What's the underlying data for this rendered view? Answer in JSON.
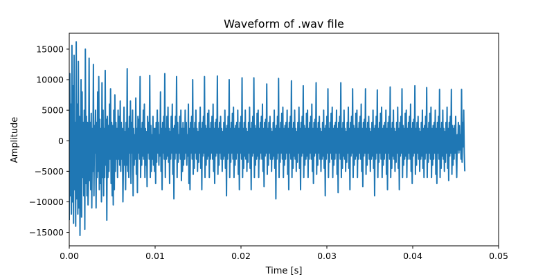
{
  "chart_data": {
    "type": "line",
    "title": "Waveform of .wav file",
    "xlabel": "Time [s]",
    "ylabel": "Amplitude",
    "xlim": [
      0,
      0.05
    ],
    "ylim": [
      -17200,
      17600
    ],
    "xticks": [
      "0.00",
      "0.01",
      "0.02",
      "0.03",
      "0.04",
      "0.05"
    ],
    "yticks": [
      "−15000",
      "−10000",
      "−5000",
      "0",
      "5000",
      "10000",
      "15000"
    ],
    "grid": false,
    "legend": "none",
    "colors": {
      "line": "#1f77b4"
    },
    "sample_interval": 6.25e-05,
    "series": [
      {
        "values": [
          -13000,
          11000,
          -9000,
          6000,
          -12000,
          15600,
          -10000,
          9000,
          -13500,
          14000,
          -8000,
          3000,
          -14000,
          16200,
          -9500,
          6000,
          -12000,
          13000,
          -11000,
          4000,
          -15500,
          -3000,
          10000,
          -12500,
          8000,
          -6000,
          3000,
          -9000,
          5000,
          -14500,
          15000,
          -7000,
          4000,
          -9000,
          3000,
          -10500,
          -6000,
          13500,
          -6500,
          3000,
          -8000,
          4500,
          -11000,
          2000,
          -5000,
          12500,
          -9000,
          2500,
          -2000,
          5000,
          -11000,
          3000,
          -6000,
          8000,
          -5000,
          10500,
          -8000,
          3500,
          -7000,
          2000,
          -10000,
          9500,
          -6000,
          5000,
          -9000,
          2000,
          -6000,
          11500,
          -4000,
          3500,
          -13000,
          4000,
          -6000,
          2500,
          -5000,
          6000,
          -3000,
          8500,
          -7000,
          3000,
          -9000,
          2500,
          -10500,
          5000,
          -8000,
          7500,
          -5000,
          3000,
          -3000,
          2000,
          -6000,
          5000,
          -3000,
          4000,
          -4000,
          6500,
          -5000,
          3000,
          -3000,
          2000,
          -10000,
          -3000,
          5500,
          -4000,
          1500,
          -8000,
          3000,
          -4000,
          11800,
          -5000,
          2000,
          -6000,
          4000,
          -2000,
          6500,
          -7000,
          3000,
          -2000,
          5000,
          -9000,
          2000,
          -4000,
          1000,
          -3000,
          7000,
          -5500,
          2000,
          -8500,
          4000,
          -2000,
          3500,
          -3000,
          10500,
          -6000,
          2000,
          -4000,
          3000,
          -2500,
          5000,
          -3000,
          6000,
          -6000,
          2000,
          -4000,
          1500,
          -7500,
          4000,
          -2000,
          3000,
          -3000,
          10700,
          -6000,
          2500,
          -5000,
          1000,
          -3000,
          4000,
          -4000,
          2000,
          -5000,
          2000,
          -7000,
          3000,
          -3500,
          5000,
          -2000,
          3000,
          -4000,
          1000,
          -2500,
          8000,
          -5000,
          2000,
          -8000,
          3000,
          -2000,
          4000,
          -3000,
          11000,
          -6000,
          2000,
          -3000,
          4000,
          -2500,
          5500,
          -3500,
          2000,
          -7000,
          1500,
          -3000,
          4000,
          -2000,
          6000,
          -5500,
          2000,
          -9500,
          2500,
          -3000,
          4000,
          -2000,
          10500,
          -6000,
          3000,
          -3500,
          1000,
          -2000,
          4000,
          -3000,
          5000,
          -6500,
          2000,
          -5000,
          3000,
          -4000,
          2000,
          -3000,
          5000,
          -2000,
          3000,
          -4000,
          1000,
          -2500,
          6000,
          -7000,
          2000,
          -8000,
          3000,
          -2000,
          4000,
          -3000,
          10000,
          -5500,
          2000,
          -4500,
          3000,
          -2000,
          5000,
          -3000,
          2000,
          -5000,
          1500,
          -3500,
          3000,
          -2000,
          5500,
          -4500,
          2000,
          -8000,
          3000,
          -2500,
          4000,
          -2000,
          10500,
          -6000,
          2500,
          -4000,
          2000,
          -3000,
          4500,
          -2500,
          5000,
          -6000,
          2000,
          -3000,
          3000,
          -2000,
          4000,
          -3000,
          6000,
          -5000,
          2000,
          -7000,
          3000,
          -2500,
          3500,
          -2000,
          10600,
          -5500,
          2000,
          -4000,
          3000,
          -2000,
          4000,
          -3000,
          2000,
          -5000,
          1500,
          -3000,
          3000,
          -2500,
          5000,
          -4500,
          2000,
          -9000,
          2500,
          -3000,
          4000,
          -2000,
          10000,
          -6000,
          2000,
          -3500,
          3000,
          -2000,
          4500,
          -3000,
          5500,
          -6000,
          2000,
          -4000,
          2500,
          -3000,
          3000,
          -2000,
          5000,
          -5500,
          2000,
          -8000,
          3000,
          -2000,
          4000,
          -3000,
          10300,
          -6000,
          2000,
          -4500,
          3000,
          -2500,
          5000,
          -3000,
          2000,
          -5000,
          1500,
          -3500,
          3000,
          -2000,
          5500,
          -4500,
          2000,
          -8000,
          3000,
          -2500,
          4000,
          -2000,
          10300,
          -6000,
          2500,
          -4000,
          2000,
          -3000,
          4500,
          -2500,
          5000,
          -6000,
          2000,
          -3000,
          3000,
          -2000,
          4000,
          -3000,
          6000,
          -5000,
          2000,
          -7500,
          3000,
          -2500,
          3500,
          -2000,
          9300,
          -5500,
          2000,
          -4000,
          3000,
          -2000,
          4000,
          -3000,
          2000,
          -5000,
          1500,
          -3000,
          3000,
          -2500,
          5000,
          -4500,
          2000,
          -9500,
          2500,
          -3000,
          4000,
          -2000,
          10200,
          -6000,
          2000,
          -3500,
          3000,
          -2000,
          4500,
          -3000,
          5500,
          -6000,
          2000,
          -4000,
          2500,
          -3000,
          3000,
          -2000,
          5000,
          -5500,
          2000,
          -8000,
          3000,
          -2000,
          4000,
          -3000,
          9800,
          -6000,
          2000,
          -4500,
          3000,
          -2500,
          5000,
          -3000,
          2000,
          -5000,
          1500,
          -3500,
          3000,
          -2000,
          5500,
          -4500,
          2000,
          -8000,
          3000,
          -2500,
          4000,
          -2000,
          9000,
          -6000,
          2500,
          -4000,
          2000,
          -3000,
          4500,
          -2500,
          5000,
          -6000,
          2000,
          -3000,
          3000,
          -2000,
          4000,
          -3000,
          6000,
          -5000,
          2000,
          -7000,
          3000,
          -2500,
          3500,
          -2000,
          9500,
          -5500,
          2000,
          -4000,
          3000,
          -2000,
          4000,
          -3000,
          2000,
          -5000,
          1500,
          -3000,
          3000,
          -2500,
          5000,
          -4500,
          2000,
          -9000,
          2500,
          -3000,
          4000,
          -2000,
          8500,
          -6000,
          2000,
          -3500,
          3000,
          -2000,
          4500,
          -3000,
          5500,
          -6000,
          2000,
          -4000,
          2500,
          -3000,
          3000,
          -2000,
          5000,
          -5500,
          2000,
          -8500,
          3000,
          -2000,
          4000,
          -3000,
          9500,
          -6000,
          2000,
          -4500,
          3000,
          -2500,
          5000,
          -3000,
          2000,
          -5000,
          1500,
          -3500,
          3000,
          -2000,
          5500,
          -4500,
          2000,
          -8000,
          3000,
          -2500,
          4000,
          -2000,
          8500,
          -6000,
          2500,
          -4000,
          2000,
          -3000,
          4500,
          -2500,
          5000,
          -6000,
          2000,
          -3000,
          3000,
          -2000,
          4000,
          -3000,
          6000,
          -5000,
          2000,
          -7500,
          3000,
          -2500,
          3500,
          -2000,
          8500,
          -5500,
          2000,
          -4000,
          3000,
          -2000,
          4000,
          -3000,
          2000,
          -5000,
          1500,
          -3000,
          3000,
          -2500,
          5000,
          -4500,
          2000,
          -9000,
          2500,
          -3000,
          4000,
          -2000,
          8300,
          -6000,
          2000,
          -3500,
          3000,
          -2000,
          4500,
          -3000,
          5500,
          -6000,
          2000,
          -4000,
          2500,
          -3000,
          3000,
          -2000,
          5000,
          -5500,
          2000,
          -8000,
          3000,
          -2000,
          4000,
          -3000,
          8800,
          -6000,
          2000,
          -4500,
          3000,
          -2500,
          5000,
          -3000,
          2000,
          -5000,
          1500,
          -3500,
          3000,
          -2000,
          5500,
          -4500,
          2000,
          -8000,
          3000,
          -2500,
          4000,
          -2000,
          8500,
          -6000,
          2500,
          -4000,
          2000,
          -3000,
          4500,
          -2500,
          5000,
          -6000,
          2000,
          -3000,
          3000,
          -2000,
          4000,
          -3000,
          6000,
          -5000,
          2000,
          -7000,
          3000,
          -2500,
          3500,
          -2000,
          9000,
          -5500,
          2000,
          -4000,
          3000,
          -2000,
          4000,
          -3000,
          2000,
          -5000,
          1500,
          -3000,
          3000,
          -2500,
          5000,
          -4500,
          2000,
          -6000,
          2500,
          -3000,
          4000,
          -2000,
          8700,
          -6000,
          2000,
          -3500,
          3000,
          -2000,
          4500,
          -3000,
          5500,
          -6000,
          2000,
          -4000,
          2500,
          -3000,
          3000,
          -2000,
          5000,
          -5500,
          2000,
          -7000,
          3000,
          -2000,
          4000,
          -3000,
          8400,
          -6000,
          2000,
          -4500,
          3000,
          -2500,
          5000,
          -3000,
          2000,
          -5000,
          1500,
          -3500,
          3000,
          -2000,
          5500,
          -4500,
          2000,
          -6500,
          3000,
          -2500,
          4000,
          -2000,
          8400,
          -5500,
          2500,
          -4000,
          2000,
          -3000,
          2500,
          -2000,
          4000,
          -3000,
          -6000,
          1000,
          -1500,
          3000,
          -2000,
          2500,
          -1500,
          1000,
          -3000,
          8400,
          -3500,
          3000,
          -1000,
          5000,
          -2000,
          -5000
        ]
      }
    ]
  }
}
